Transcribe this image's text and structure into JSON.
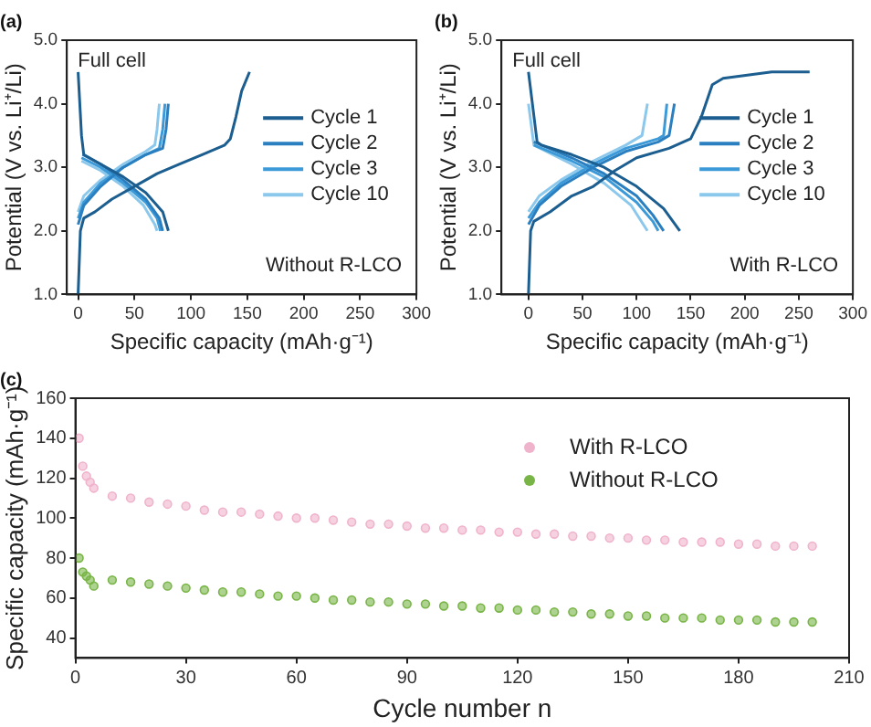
{
  "chart_data": [
    {
      "type": "line",
      "title": "(a)",
      "xlabel": "Specific capacity (mAh·g⁻¹)",
      "ylabel": "Potential (V vs. Li⁺/Li)",
      "annotations": [
        "Full cell",
        "Without R-LCO"
      ],
      "xlim": [
        -10,
        300
      ],
      "xticks": [
        0,
        50,
        100,
        150,
        200,
        250,
        300
      ],
      "ylim": [
        1.0,
        5.0
      ],
      "yticks": [
        {
          "value": 1,
          "label": "1.0"
        },
        {
          "value": 2,
          "label": "2.0"
        },
        {
          "value": 3,
          "label": "3.0"
        },
        {
          "value": 4,
          "label": "4.0"
        },
        {
          "value": 5,
          "label": "5.0"
        }
      ],
      "grid": false,
      "legend": "right",
      "marker": "none",
      "line_style": "solid",
      "series": [
        {
          "name": "Cycle 1",
          "color": "#1b5e8f",
          "x": [
            0,
            1,
            2,
            5,
            15,
            30,
            50,
            70,
            90,
            110,
            130,
            135,
            140,
            145,
            152,
            null,
            0,
            3,
            5,
            20,
            40,
            60,
            75,
            80
          ],
          "values": [
            1.0,
            1.5,
            2.0,
            2.2,
            2.3,
            2.5,
            2.7,
            2.9,
            3.05,
            3.2,
            3.35,
            3.45,
            3.8,
            4.2,
            4.5,
            null,
            4.5,
            3.5,
            3.2,
            3.05,
            2.85,
            2.6,
            2.3,
            2.0
          ]
        },
        {
          "name": "Cycle 2",
          "color": "#2a7fc0",
          "x": [
            0,
            5,
            20,
            40,
            60,
            75,
            78,
            80,
            null,
            4,
            20,
            40,
            60,
            72,
            75
          ],
          "values": [
            2.1,
            2.4,
            2.7,
            3.0,
            3.2,
            3.3,
            3.6,
            4.0,
            null,
            3.2,
            3.05,
            2.8,
            2.5,
            2.2,
            2.0
          ]
        },
        {
          "name": "Cycle 3",
          "color": "#3c9ad8",
          "x": [
            0,
            5,
            20,
            40,
            60,
            72,
            75,
            77,
            null,
            3,
            20,
            40,
            60,
            70,
            73
          ],
          "values": [
            2.2,
            2.45,
            2.75,
            3.0,
            3.2,
            3.3,
            3.6,
            4.0,
            null,
            3.15,
            3.0,
            2.75,
            2.45,
            2.2,
            2.0
          ]
        },
        {
          "name": "Cycle 10",
          "color": "#8cc8ec",
          "x": [
            0,
            5,
            20,
            40,
            60,
            68,
            70,
            72,
            null,
            3,
            20,
            40,
            58,
            68,
            70
          ],
          "values": [
            2.3,
            2.55,
            2.8,
            3.05,
            3.25,
            3.35,
            3.6,
            4.0,
            null,
            3.1,
            2.95,
            2.7,
            2.4,
            2.1,
            2.0
          ]
        }
      ]
    },
    {
      "type": "line",
      "title": "(b)",
      "xlabel": "Specific capacity (mAh·g⁻¹)",
      "ylabel": "Potential (V vs. Li⁺/Li)",
      "annotations": [
        "Full cell",
        "With R-LCO"
      ],
      "xlim": [
        -25,
        300
      ],
      "xticks": [
        0,
        50,
        100,
        150,
        200,
        250,
        300
      ],
      "ylim": [
        1.0,
        5.0
      ],
      "yticks": [
        {
          "value": 1,
          "label": "1.0"
        },
        {
          "value": 2,
          "label": "2.0"
        },
        {
          "value": 3,
          "label": "3.0"
        },
        {
          "value": 4,
          "label": "4.0"
        },
        {
          "value": 5,
          "label": "5.0"
        }
      ],
      "grid": false,
      "legend": "right",
      "marker": "none",
      "line_style": "solid",
      "series": [
        {
          "name": "Cycle 1",
          "color": "#1b5e8f",
          "x": [
            0,
            2,
            5,
            20,
            40,
            60,
            80,
            100,
            130,
            150,
            160,
            170,
            180,
            225,
            260,
            null,
            0,
            8,
            12,
            40,
            70,
            100,
            125,
            140
          ],
          "values": [
            1.0,
            2.0,
            2.15,
            2.3,
            2.55,
            2.7,
            2.95,
            3.15,
            3.3,
            3.45,
            3.8,
            4.3,
            4.4,
            4.5,
            4.5,
            null,
            4.5,
            3.4,
            3.35,
            3.2,
            3.0,
            2.7,
            2.35,
            2.0
          ]
        },
        {
          "name": "Cycle 2",
          "color": "#2a7fc0",
          "x": [
            0,
            10,
            30,
            60,
            90,
            120,
            130,
            135,
            null,
            5,
            12,
            40,
            70,
            100,
            115,
            125
          ],
          "values": [
            2.1,
            2.4,
            2.7,
            3.0,
            3.25,
            3.4,
            3.5,
            4.0,
            null,
            3.4,
            3.35,
            3.15,
            2.9,
            2.55,
            2.25,
            2.0
          ]
        },
        {
          "name": "Cycle 3",
          "color": "#3c9ad8",
          "x": [
            0,
            10,
            30,
            60,
            90,
            120,
            125,
            128,
            null,
            5,
            40,
            70,
            100,
            115,
            120
          ],
          "values": [
            2.2,
            2.45,
            2.75,
            3.05,
            3.3,
            3.45,
            3.5,
            4.0,
            null,
            3.35,
            3.1,
            2.85,
            2.45,
            2.15,
            2.0
          ]
        },
        {
          "name": "Cycle 10",
          "color": "#8cc8ec",
          "x": [
            0,
            10,
            30,
            60,
            90,
            105,
            110,
            null,
            0,
            5,
            40,
            70,
            95,
            110
          ],
          "values": [
            2.3,
            2.55,
            2.8,
            3.1,
            3.35,
            3.5,
            4.0,
            null,
            4.0,
            3.35,
            3.05,
            2.75,
            2.4,
            2.0
          ]
        }
      ]
    },
    {
      "type": "scatter",
      "title": "(c)",
      "xlabel": "Cycle number n",
      "ylabel": "Specific capacity (mAh·g⁻¹)",
      "xlim": [
        0,
        210
      ],
      "xticks": [
        0,
        30,
        60,
        90,
        120,
        150,
        180,
        210
      ],
      "ylim": [
        30,
        160
      ],
      "yticks": [
        40,
        60,
        80,
        100,
        120,
        140,
        160
      ],
      "grid": false,
      "legend": "top right",
      "marker": "circle",
      "series": [
        {
          "name": "With R-LCO",
          "color": "#f0b3cc",
          "x": [
            1,
            2,
            3,
            4,
            5,
            10,
            15,
            20,
            25,
            30,
            35,
            40,
            45,
            50,
            55,
            60,
            65,
            70,
            75,
            80,
            85,
            90,
            95,
            100,
            105,
            110,
            115,
            120,
            125,
            130,
            135,
            140,
            145,
            150,
            155,
            160,
            165,
            170,
            175,
            180,
            185,
            190,
            195,
            200
          ],
          "values": [
            140,
            126,
            121,
            118,
            115,
            111,
            110,
            108,
            107,
            106,
            104,
            103,
            103,
            102,
            101,
            100,
            100,
            99,
            98,
            97,
            97,
            96,
            95,
            95,
            94,
            94,
            93,
            93,
            92,
            92,
            91,
            91,
            90,
            90,
            89,
            89,
            88,
            88,
            88,
            87,
            87,
            86,
            86,
            86
          ]
        },
        {
          "name": "Without R-LCO",
          "color": "#78b446",
          "x": [
            1,
            2,
            3,
            4,
            5,
            10,
            15,
            20,
            25,
            30,
            35,
            40,
            45,
            50,
            55,
            60,
            65,
            70,
            75,
            80,
            85,
            90,
            95,
            100,
            105,
            110,
            115,
            120,
            125,
            130,
            135,
            140,
            145,
            150,
            155,
            160,
            165,
            170,
            175,
            180,
            185,
            190,
            195,
            200
          ],
          "values": [
            80,
            73,
            71,
            69,
            66,
            69,
            68,
            67,
            66,
            65,
            64,
            63,
            63,
            62,
            61,
            61,
            60,
            59,
            59,
            58,
            58,
            57,
            57,
            56,
            56,
            55,
            55,
            54,
            54,
            53,
            53,
            52,
            52,
            51,
            51,
            50,
            50,
            50,
            49,
            49,
            49,
            48,
            48,
            48
          ]
        }
      ]
    }
  ]
}
